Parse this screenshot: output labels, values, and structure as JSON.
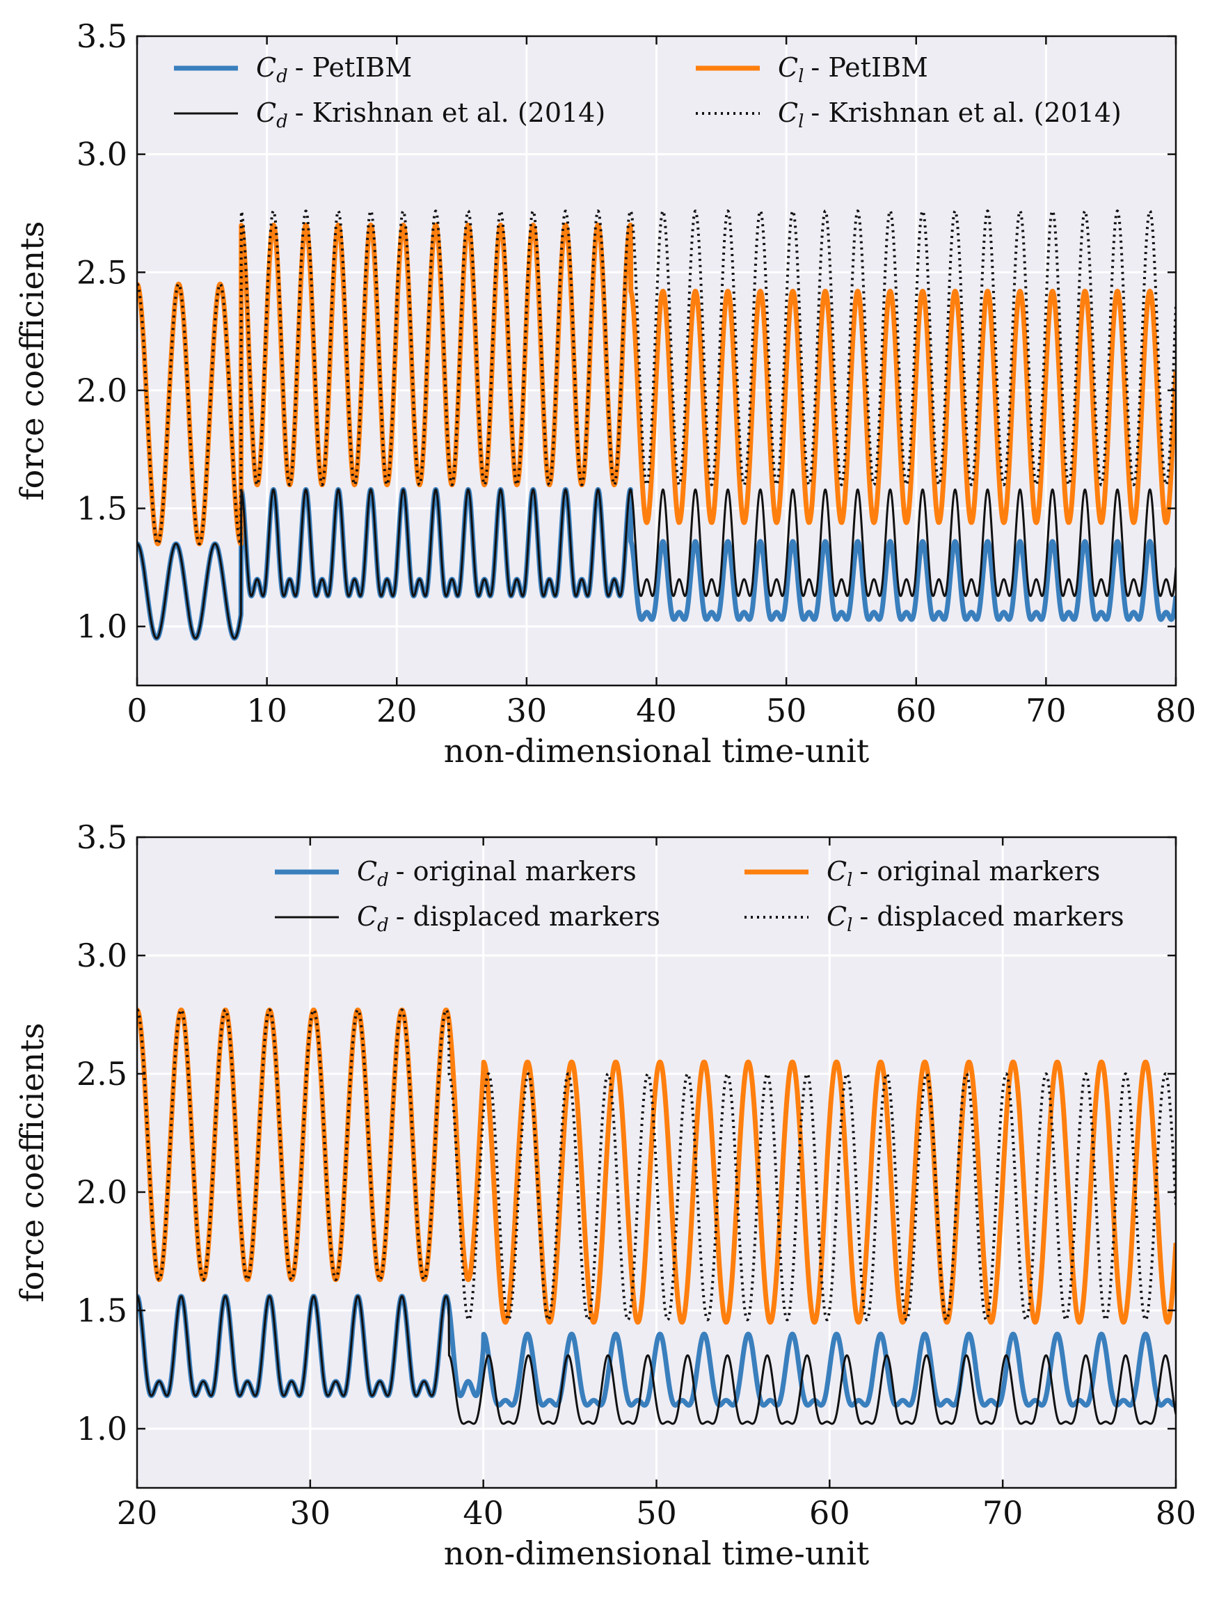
{
  "chart_data": [
    {
      "type": "line",
      "xlabel": "non-dimensional time-unit",
      "ylabel": "force coefficients",
      "xlim": [
        0,
        80
      ],
      "ylim": [
        0.75,
        3.5
      ],
      "xticks": [
        0,
        10,
        20,
        30,
        40,
        50,
        60,
        70,
        80
      ],
      "yticks": [
        1.0,
        1.5,
        2.0,
        2.5,
        3.0,
        3.5
      ],
      "xtick_labels": [
        "0",
        "10",
        "20",
        "30",
        "40",
        "50",
        "60",
        "70",
        "80"
      ],
      "ytick_labels": [
        "1.0",
        "1.5",
        "2.0",
        "2.5",
        "3.0",
        "3.5"
      ],
      "grid": true,
      "legend_position": "top",
      "legend_columns": 2,
      "series": [
        {
          "name": "- PetIBM",
          "symbol": "C",
          "sub": "d",
          "color": "#3a7fbd",
          "style": "solid",
          "width": "thick",
          "segments": [
            {
              "t0": 0,
              "t1": 8,
              "base": 1.15,
              "amp": 0.2,
              "period": 3.0,
              "sec": 0.0,
              "drift": 0
            },
            {
              "t0": 8,
              "t1": 38,
              "base": 1.28,
              "amp": 0.19,
              "period": 2.5,
              "sec": 0.11,
              "drift": 0
            },
            {
              "t0": 38,
              "t1": 80,
              "base": 1.14,
              "amp": 0.15,
              "period": 2.5,
              "sec": 0.07,
              "drift": 0
            }
          ]
        },
        {
          "name": "- PetIBM",
          "symbol": "C",
          "sub": "l",
          "color": "#ff7f0e",
          "style": "solid",
          "width": "thick",
          "segments": [
            {
              "t0": 0,
              "t1": 8,
              "base": 1.9,
              "amp": 0.55,
              "period": 3.2,
              "sec": 0.0,
              "drift": 0
            },
            {
              "t0": 8,
              "t1": 38,
              "base": 2.15,
              "amp": 0.55,
              "period": 2.5,
              "sec": 0.0,
              "drift": 0
            },
            {
              "t0": 38,
              "t1": 80,
              "base": 1.93,
              "amp": 0.49,
              "period": 2.5,
              "sec": 0.0,
              "drift": 0
            }
          ]
        },
        {
          "name": "- Krishnan et al. (2014)",
          "symbol": "C",
          "sub": "d",
          "color": "#111111",
          "style": "solid",
          "width": "thin",
          "segments": [
            {
              "t0": 0,
              "t1": 8,
              "base": 1.15,
              "amp": 0.2,
              "period": 3.0,
              "sec": 0.0,
              "drift": 0
            },
            {
              "t0": 8,
              "t1": 80,
              "base": 1.28,
              "amp": 0.19,
              "period": 2.5,
              "sec": 0.11,
              "drift": 0
            }
          ]
        },
        {
          "name": "- Krishnan et al. (2014)",
          "symbol": "C",
          "sub": "l",
          "color": "#111111",
          "style": "dotted",
          "width": "thin",
          "segments": [
            {
              "t0": 0,
              "t1": 8,
              "base": 1.9,
              "amp": 0.55,
              "period": 3.2,
              "sec": 0.0,
              "drift": 0
            },
            {
              "t0": 8,
              "t1": 80,
              "base": 2.18,
              "amp": 0.58,
              "period": 2.5,
              "sec": 0.0,
              "drift": 0
            }
          ]
        }
      ]
    },
    {
      "type": "line",
      "xlabel": "non-dimensional time-unit",
      "ylabel": "force coefficients",
      "xlim": [
        20,
        80
      ],
      "ylim": [
        0.75,
        3.5
      ],
      "xticks": [
        20,
        30,
        40,
        50,
        60,
        70,
        80
      ],
      "yticks": [
        1.0,
        1.5,
        2.0,
        2.5,
        3.0,
        3.5
      ],
      "xtick_labels": [
        "20",
        "30",
        "40",
        "50",
        "60",
        "70",
        "80"
      ],
      "ytick_labels": [
        "1.0",
        "1.5",
        "2.0",
        "2.5",
        "3.0",
        "3.5"
      ],
      "grid": true,
      "legend_position": "top",
      "legend_columns": 2,
      "series": [
        {
          "name": "- original markers",
          "symbol": "C",
          "sub": "d",
          "color": "#3a7fbd",
          "style": "solid",
          "width": "thick",
          "segments": [
            {
              "t0": 20,
              "t1": 40,
              "base": 1.28,
              "amp": 0.18,
              "period": 2.55,
              "sec": 0.1,
              "drift": 0
            },
            {
              "t0": 40,
              "t1": 80,
              "base": 1.2,
              "amp": 0.14,
              "period": 2.55,
              "sec": 0.06,
              "drift": 0
            }
          ]
        },
        {
          "name": "- original markers",
          "symbol": "C",
          "sub": "l",
          "color": "#ff7f0e",
          "style": "solid",
          "width": "thick",
          "segments": [
            {
              "t0": 20,
              "t1": 40,
              "base": 2.2,
              "amp": 0.57,
              "period": 2.55,
              "sec": 0.0,
              "drift": 0
            },
            {
              "t0": 40,
              "t1": 80,
              "base": 2.0,
              "amp": 0.55,
              "period": 2.55,
              "sec": 0.0,
              "drift": 0
            }
          ]
        },
        {
          "name": "- displaced markers",
          "symbol": "C",
          "sub": "d",
          "color": "#111111",
          "style": "solid",
          "width": "thin",
          "segments": [
            {
              "t0": 20,
              "t1": 38,
              "base": 1.28,
              "amp": 0.18,
              "period": 2.55,
              "sec": 0.1,
              "drift": 0
            },
            {
              "t0": 38,
              "t1": 80,
              "base": 1.12,
              "amp": 0.14,
              "period": 2.3,
              "sec": 0.05,
              "drift": 0
            }
          ]
        },
        {
          "name": "- displaced markers",
          "symbol": "C",
          "sub": "l",
          "color": "#111111",
          "style": "dotted",
          "width": "thin",
          "segments": [
            {
              "t0": 20,
              "t1": 38,
              "base": 2.2,
              "amp": 0.57,
              "period": 2.55,
              "sec": 0.0,
              "drift": 0
            },
            {
              "t0": 38,
              "t1": 80,
              "base": 1.98,
              "amp": 0.52,
              "period": 2.3,
              "sec": 0.0,
              "drift": 0
            }
          ]
        }
      ]
    }
  ]
}
